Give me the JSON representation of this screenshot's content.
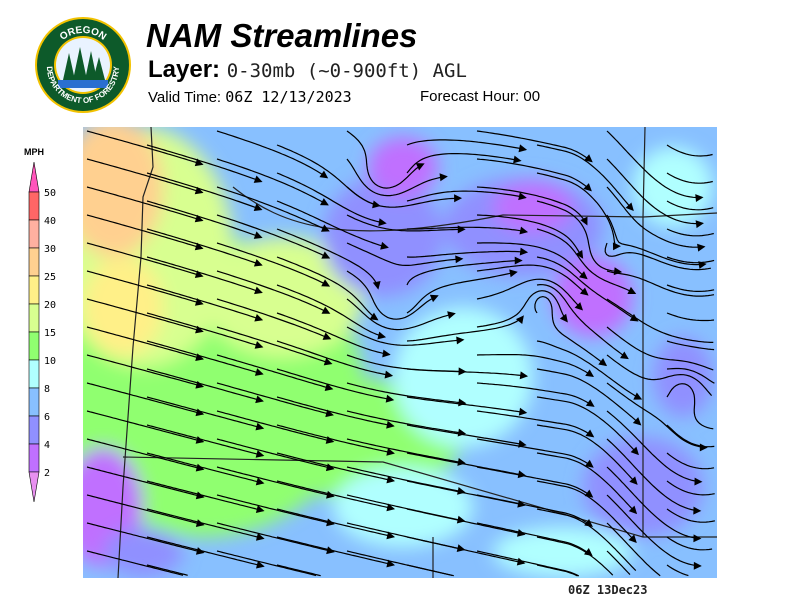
{
  "header": {
    "title": "NAM Streamlines",
    "layer_label": "Layer:",
    "layer_value": "0-30mb (~0-900ft) AGL",
    "valid_label": "Valid Time:",
    "valid_value": "06Z 12/13/2023",
    "forecast_hour_label": "Forecast Hour:",
    "forecast_hour_value": "00"
  },
  "logo": {
    "top_text": "OREGON",
    "bottom_text": "DEPARTMENT OF FORESTRY"
  },
  "legend": {
    "unit": "MPH",
    "bins": [
      {
        "label": "50",
        "color": "#ff6666"
      },
      {
        "label": "40",
        "color": "#ffb0a0"
      },
      {
        "label": "30",
        "color": "#ffd090"
      },
      {
        "label": "25",
        "color": "#fff088"
      },
      {
        "label": "20",
        "color": "#d8ff90"
      },
      {
        "label": "15",
        "color": "#90ff70"
      },
      {
        "label": "10",
        "color": "#b0ffff"
      },
      {
        "label": "8",
        "color": "#88c0ff"
      },
      {
        "label": "6",
        "color": "#9090ff"
      },
      {
        "label": "4",
        "color": "#c070ff"
      },
      {
        "label": "2",
        "color": "#e890f0"
      }
    ],
    "top_arrow_color": "#ff55bb"
  },
  "map": {
    "timestamp": "06Z 13Dec23"
  }
}
